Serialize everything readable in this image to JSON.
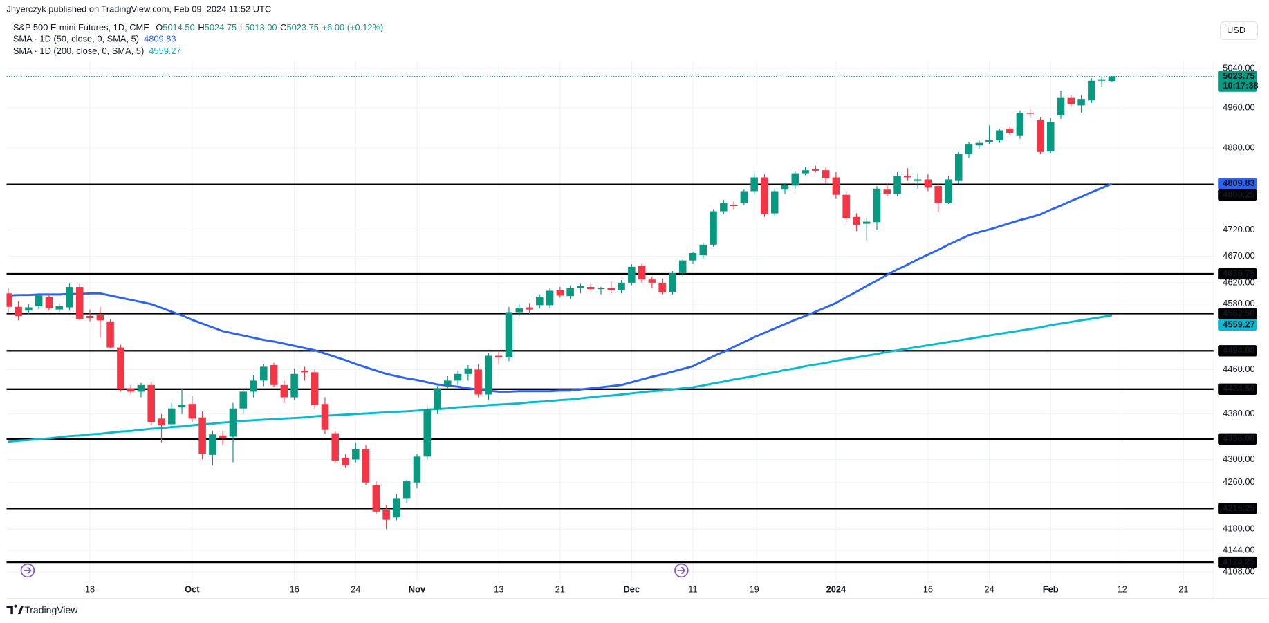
{
  "header": {
    "publisher": "Jhyerczyk published on TradingView.com, Feb 09, 2024 11:52 UTC",
    "currency": "USD",
    "brand": "TradingView"
  },
  "chart_data": {
    "type": "candlestick",
    "title": "S&P 500 E-mini Futures, 1D, CME",
    "ohlc_legend": [
      {
        "key": "O",
        "value": "5014.50"
      },
      {
        "key": "H",
        "value": "5024.75"
      },
      {
        "key": "L",
        "value": "5013.00"
      },
      {
        "key": "C",
        "value": "5023.75"
      }
    ],
    "change": "+6.00 (+0.12%)",
    "up_color": "#089981",
    "down_color": "#f23645",
    "categories": [
      null,
      null,
      null,
      null,
      null,
      null,
      null,
      null,
      "18",
      null,
      null,
      null,
      null,
      null,
      null,
      null,
      null,
      null,
      "Oct",
      null,
      null,
      null,
      null,
      null,
      null,
      null,
      null,
      null,
      "16",
      null,
      null,
      null,
      null,
      null,
      "24",
      null,
      null,
      null,
      null,
      null,
      "Nov",
      null,
      null,
      null,
      null,
      null,
      null,
      null,
      "13",
      null,
      null,
      null,
      null,
      null,
      "21",
      null,
      null,
      null,
      null,
      null,
      null,
      "Dec",
      null,
      null,
      null,
      null,
      null,
      "11",
      null,
      null,
      null,
      null,
      null,
      "19",
      null,
      null,
      null,
      null,
      null,
      null,
      null,
      "2024",
      null,
      null,
      null,
      null,
      null,
      null,
      null,
      null,
      "16",
      null,
      null,
      null,
      null,
      null,
      "24",
      null,
      null,
      null,
      null,
      null,
      "Feb",
      null,
      null,
      null,
      null,
      null,
      null,
      "12",
      null,
      null,
      null,
      null,
      null,
      "21",
      null,
      null,
      null
    ],
    "open": [
      4600,
      4575,
      4568,
      4576,
      4594,
      4570,
      4574,
      4612,
      4558,
      4560,
      4548,
      4500,
      4426,
      4420,
      4432,
      4372,
      4362,
      4392,
      4398,
      4374,
      4308,
      4342,
      4340,
      4390,
      4420,
      4440,
      4468,
      4432,
      4410,
      4458,
      4455,
      4398,
      4346,
      4303,
      4300,
      4318,
      4256,
      4213,
      4200,
      4233,
      4260,
      4305,
      4388,
      4432,
      4440,
      4452,
      4460,
      4415,
      4485,
      4482,
      4565,
      4574,
      4578,
      4578,
      4606,
      4595,
      4610,
      4612,
      4608,
      4610,
      4606,
      4620,
      4652,
      4626,
      4620,
      4603,
      4638,
      4662,
      4672,
      4692,
      4756,
      4768,
      4772,
      4795,
      4822,
      4752,
      4798,
      4806,
      4830,
      4838,
      4836,
      4822,
      4788,
      4745,
      4732,
      4735,
      4798,
      4790,
      4825,
      4815,
      4818,
      4805,
      4772,
      4815,
      4868,
      4885,
      4892,
      4895,
      4918,
      4905,
      4950,
      4935,
      4873,
      4945,
      4980,
      4965,
      4975,
      5015,
      5014.5,
      null,
      null,
      null,
      null,
      null,
      null,
      null,
      null,
      null,
      null
    ],
    "high": [
      4610,
      4585,
      4580,
      4600,
      4598,
      4582,
      4618,
      4620,
      4570,
      4575,
      4552,
      4505,
      4432,
      4436,
      4438,
      4380,
      4400,
      4425,
      4412,
      4385,
      4350,
      4350,
      4400,
      4425,
      4450,
      4470,
      4472,
      4440,
      4462,
      4465,
      4460,
      4410,
      4350,
      4310,
      4330,
      4325,
      4262,
      4222,
      4240,
      4265,
      4310,
      4392,
      4430,
      4448,
      4458,
      4468,
      4470,
      4490,
      4495,
      4575,
      4580,
      4582,
      4598,
      4610,
      4612,
      4615,
      4618,
      4618,
      4612,
      4622,
      4625,
      4655,
      4656,
      4632,
      4628,
      4642,
      4665,
      4678,
      4696,
      4760,
      4778,
      4775,
      4798,
      4830,
      4828,
      4800,
      4812,
      4835,
      4842,
      4845,
      4842,
      4832,
      4795,
      4752,
      4742,
      4805,
      4810,
      4832,
      4840,
      4830,
      4828,
      4810,
      4825,
      4872,
      4892,
      4895,
      4925,
      4918,
      4922,
      4955,
      4958,
      4942,
      4940,
      4995,
      4985,
      4985,
      5020,
      5022,
      5024.75,
      null,
      null,
      null,
      null,
      null,
      null,
      null,
      null,
      null,
      null
    ],
    "low": [
      4565,
      4550,
      4560,
      4570,
      4568,
      4565,
      4568,
      4550,
      4548,
      4518,
      4498,
      4420,
      4415,
      4410,
      4360,
      4330,
      4355,
      4380,
      4365,
      4300,
      4290,
      4325,
      4295,
      4380,
      4410,
      4430,
      4428,
      4400,
      4405,
      4440,
      4390,
      4345,
      4295,
      4285,
      4295,
      4255,
      4205,
      4180,
      4195,
      4225,
      4250,
      4300,
      4380,
      4425,
      4432,
      4440,
      4410,
      4405,
      4470,
      4475,
      4558,
      4562,
      4572,
      4572,
      4592,
      4590,
      4600,
      4605,
      4598,
      4600,
      4600,
      4615,
      4620,
      4610,
      4598,
      4598,
      4632,
      4655,
      4665,
      4688,
      4750,
      4760,
      4768,
      4790,
      4745,
      4748,
      4790,
      4800,
      4826,
      4832,
      4810,
      4780,
      4735,
      4718,
      4700,
      4720,
      4785,
      4785,
      4815,
      4800,
      4795,
      4755,
      4770,
      4810,
      4860,
      4878,
      4888,
      4890,
      4906,
      4898,
      4940,
      4868,
      4870,
      4938,
      4962,
      4950,
      4970,
      5002,
      5013,
      null,
      null,
      null,
      null,
      null,
      null,
      null,
      null,
      null,
      null
    ],
    "close": [
      4575,
      4558,
      4574,
      4596,
      4572,
      4576,
      4612,
      4553,
      4554,
      4550,
      4500,
      4424,
      4420,
      4432,
      4366,
      4360,
      4390,
      4396,
      4372,
      4310,
      4344,
      4338,
      4390,
      4420,
      4440,
      4465,
      4432,
      4410,
      4452,
      4455,
      4396,
      4352,
      4298,
      4290,
      4318,
      4260,
      4210,
      4196,
      4233,
      4262,
      4305,
      4388,
      4425,
      4440,
      4452,
      4462,
      4415,
      4485,
      4482,
      4565,
      4572,
      4570,
      4594,
      4605,
      4596,
      4610,
      4614,
      4608,
      4610,
      4606,
      4620,
      4650,
      4626,
      4620,
      4602,
      4638,
      4662,
      4676,
      4692,
      4756,
      4772,
      4766,
      4795,
      4822,
      4750,
      4795,
      4808,
      4830,
      4836,
      4835,
      4820,
      4788,
      4742,
      4730,
      4736,
      4800,
      4790,
      4825,
      4822,
      4818,
      4802,
      4772,
      4818,
      4868,
      4888,
      4890,
      4895,
      4915,
      4910,
      4950,
      4948,
      4872,
      4932,
      4980,
      4968,
      4978,
      5015,
      5018,
      5023.75,
      null,
      null,
      null,
      null,
      null,
      null,
      null,
      null,
      null,
      null
    ],
    "series": [
      {
        "name": "SMA · 1D (50, close, 0, SMA, 5)",
        "color": "#2962ff",
        "last_label": "4809.83",
        "values": [
          4596,
          4597,
          4597,
          4598,
          4598,
          4598,
          4599,
          4599,
          4600,
          4600,
          4596,
          4592,
          4588,
          4584,
          4580,
          4573,
          4566,
          4559,
          4551,
          4544,
          4537,
          4530,
          4526,
          4522,
          4518,
          4514,
          4511,
          4507,
          4503,
          4499,
          4495,
          4489,
          4483,
          4477,
          4470,
          4464,
          4458,
          4452,
          4448,
          4444,
          4441,
          4437,
          4433,
          4431,
          4429,
          4426,
          4424,
          4422,
          4420,
          4420,
          4421,
          4421,
          4421,
          4421,
          4422,
          4422,
          4424,
          4426,
          4428,
          4430,
          4432,
          4437,
          4442,
          4447,
          4451,
          4456,
          4461,
          4466,
          4475,
          4484,
          4492,
          4501,
          4510,
          4519,
          4527,
          4535,
          4543,
          4551,
          4558,
          4566,
          4574,
          4582,
          4593,
          4603,
          4614,
          4624,
          4635,
          4645,
          4654,
          4664,
          4673,
          4682,
          4692,
          4701,
          4710,
          4716,
          4721,
          4727,
          4733,
          4739,
          4744,
          4750,
          4759,
          4767,
          4776,
          4784,
          4793,
          4801,
          4809.83,
          null,
          null,
          null,
          null,
          null,
          null,
          null,
          null,
          null,
          null
        ]
      },
      {
        "name": "SMA · 1D (200, close, 0, SMA, 5)",
        "color": "#00bcd4",
        "last_label": "4559.27",
        "values": [
          4331,
          4333,
          4334,
          4336,
          4337,
          4339,
          4341,
          4342,
          4344,
          4345,
          4347,
          4349,
          4350,
          4352,
          4354,
          4355,
          4357,
          4358,
          4360,
          4362,
          4363,
          4365,
          4366,
          4368,
          4369,
          4370,
          4371,
          4372,
          4373,
          4374,
          4376,
          4377,
          4378,
          4379,
          4380,
          4381,
          4382,
          4383,
          4384,
          4385,
          4386,
          4388,
          4389,
          4390,
          4392,
          4393,
          4394,
          4396,
          4397,
          4398,
          4399,
          4401,
          4402,
          4403,
          4405,
          4406,
          4408,
          4410,
          4412,
          4413,
          4415,
          4417,
          4419,
          4421,
          4422,
          4424,
          4426,
          4428,
          4431,
          4435,
          4438,
          4442,
          4445,
          4448,
          4452,
          4455,
          4459,
          4462,
          4466,
          4469,
          4472,
          4476,
          4479,
          4482,
          4485,
          4488,
          4492,
          4495,
          4498,
          4501,
          4504,
          4507,
          4510,
          4513,
          4516,
          4519,
          4522,
          4525,
          4528,
          4531,
          4534,
          4537,
          4541,
          4544,
          4547,
          4550,
          4553,
          4556,
          4559.27,
          null,
          null,
          null,
          null,
          null,
          null,
          null,
          null,
          null,
          null
        ]
      }
    ],
    "levels": [
      {
        "value": 4808.25,
        "label": "4808.25"
      },
      {
        "value": 4636.75,
        "label": "4636.75"
      },
      {
        "value": 4562.5,
        "label": "4562.50"
      },
      {
        "value": 4494,
        "label": "4494.00"
      },
      {
        "value": 4424.5,
        "label": "4424.50"
      },
      {
        "value": 4336,
        "label": "4336.00"
      },
      {
        "value": 4215.25,
        "label": "4215.25"
      },
      {
        "value": 4124.25,
        "label": "4124.25"
      }
    ],
    "last_price_label": "5023.75",
    "countdown": "10:17:38",
    "log_scale": true,
    "grid": true,
    "ylim": [
      4093,
      5056
    ],
    "yticks": [
      {
        "value": 5040,
        "label": "5040.00"
      },
      {
        "value": 4960,
        "label": "4960.00"
      },
      {
        "value": 4880,
        "label": "4880.00"
      },
      {
        "value": 4720,
        "label": "4720.00"
      },
      {
        "value": 4670,
        "label": "4670.00"
      },
      {
        "value": 4620,
        "label": "4620.00"
      },
      {
        "value": 4580,
        "label": "4580.00"
      },
      {
        "value": 4460,
        "label": "4460.00"
      },
      {
        "value": 4380,
        "label": "4380.00"
      },
      {
        "value": 4300,
        "label": "4300.00"
      },
      {
        "value": 4260,
        "label": "4260.00"
      },
      {
        "value": 4180,
        "label": "4180.00"
      },
      {
        "value": 4144,
        "label": "4144.00"
      },
      {
        "value": 4108,
        "label": "4108.00"
      }
    ]
  }
}
